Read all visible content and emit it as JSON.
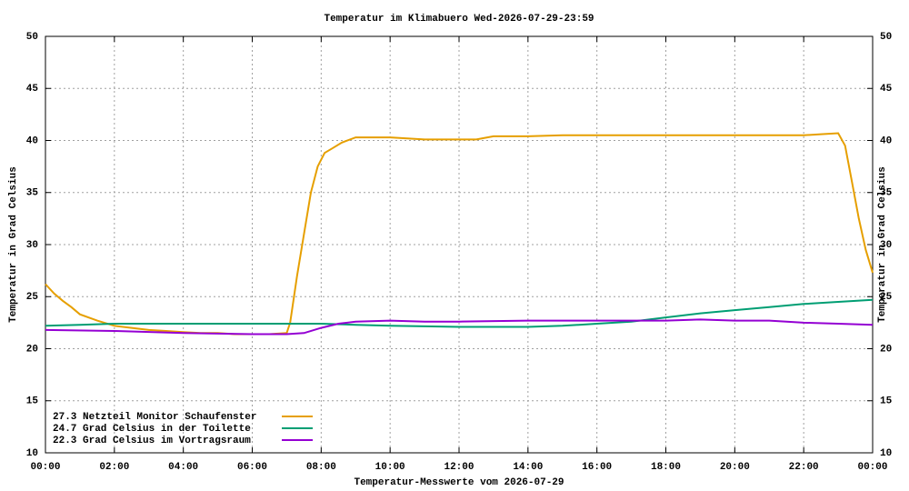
{
  "chart_data": {
    "type": "line",
    "title": "Temperatur im Klimabuero Wed-2026-07-29-23:59",
    "xlabel": "Temperatur-Messwerte vom 2026-07-29",
    "ylabel": "Temperatur in Grad Celsius",
    "y2label": "Temperatur in Grad Celsius",
    "xlim": [
      0,
      24
    ],
    "xticks": [
      {
        "value": 0,
        "label": "00:00"
      },
      {
        "value": 2,
        "label": "02:00"
      },
      {
        "value": 4,
        "label": "04:00"
      },
      {
        "value": 6,
        "label": "06:00"
      },
      {
        "value": 8,
        "label": "08:00"
      },
      {
        "value": 10,
        "label": "10:00"
      },
      {
        "value": 12,
        "label": "12:00"
      },
      {
        "value": 14,
        "label": "14:00"
      },
      {
        "value": 16,
        "label": "16:00"
      },
      {
        "value": 18,
        "label": "18:00"
      },
      {
        "value": 20,
        "label": "20:00"
      },
      {
        "value": 22,
        "label": "22:00"
      },
      {
        "value": 24,
        "label": "00:00"
      }
    ],
    "ylim": [
      10,
      50
    ],
    "yticks": [
      10,
      15,
      20,
      25,
      30,
      35,
      40,
      45,
      50
    ],
    "y2lim": [
      10,
      50
    ],
    "y2ticks": [
      10,
      15,
      20,
      25,
      30,
      35,
      40,
      45,
      50
    ],
    "grid": true,
    "legend": "lower left",
    "series": [
      {
        "name": "27.3 Netzteil Monitor Schaufenster",
        "color": "#e69f00",
        "x": [
          0,
          0.25,
          0.5,
          0.75,
          1,
          1.5,
          2,
          2.5,
          3,
          3.5,
          4,
          4.5,
          5,
          5.5,
          6,
          6.5,
          7,
          7.1,
          7.3,
          7.5,
          7.7,
          7.9,
          8.1,
          8.3,
          8.6,
          9,
          10,
          11,
          12,
          12.5,
          13,
          14,
          15,
          16,
          17,
          18,
          19,
          20,
          21,
          22,
          22.5,
          23,
          23.2,
          23.4,
          23.6,
          23.8,
          24
        ],
        "values": [
          26.2,
          25.3,
          24.6,
          24.0,
          23.3,
          22.7,
          22.2,
          22.0,
          21.8,
          21.7,
          21.6,
          21.5,
          21.5,
          21.4,
          21.4,
          21.4,
          21.5,
          22.5,
          27,
          31,
          35,
          37.5,
          38.8,
          39.2,
          39.8,
          40.3,
          40.3,
          40.1,
          40.1,
          40.1,
          40.4,
          40.4,
          40.5,
          40.5,
          40.5,
          40.5,
          40.5,
          40.5,
          40.5,
          40.5,
          40.6,
          40.7,
          39.5,
          36,
          32.5,
          29.5,
          27.3
        ]
      },
      {
        "name": "24.7 Grad Celsius in der Toilette",
        "color": "#009e73",
        "x": [
          0,
          1,
          2,
          4,
          6,
          7,
          8,
          9,
          10,
          12,
          14,
          15,
          16,
          17,
          18,
          19,
          20,
          21,
          22,
          23,
          24
        ],
        "values": [
          22.2,
          22.3,
          22.4,
          22.4,
          22.4,
          22.4,
          22.4,
          22.3,
          22.2,
          22.1,
          22.1,
          22.2,
          22.4,
          22.6,
          23.0,
          23.4,
          23.7,
          24.0,
          24.3,
          24.5,
          24.7
        ]
      },
      {
        "name": "22.3 Grad Celsius im Vortragsraum",
        "color": "#9400d3",
        "x": [
          0,
          2,
          4,
          6,
          7,
          7.5,
          8,
          8.5,
          9,
          10,
          11,
          12,
          14,
          16,
          18,
          19,
          20,
          21,
          22,
          23,
          24
        ],
        "values": [
          21.8,
          21.7,
          21.5,
          21.4,
          21.4,
          21.5,
          22.0,
          22.4,
          22.6,
          22.7,
          22.6,
          22.6,
          22.7,
          22.7,
          22.7,
          22.8,
          22.7,
          22.7,
          22.5,
          22.4,
          22.3
        ]
      }
    ]
  }
}
